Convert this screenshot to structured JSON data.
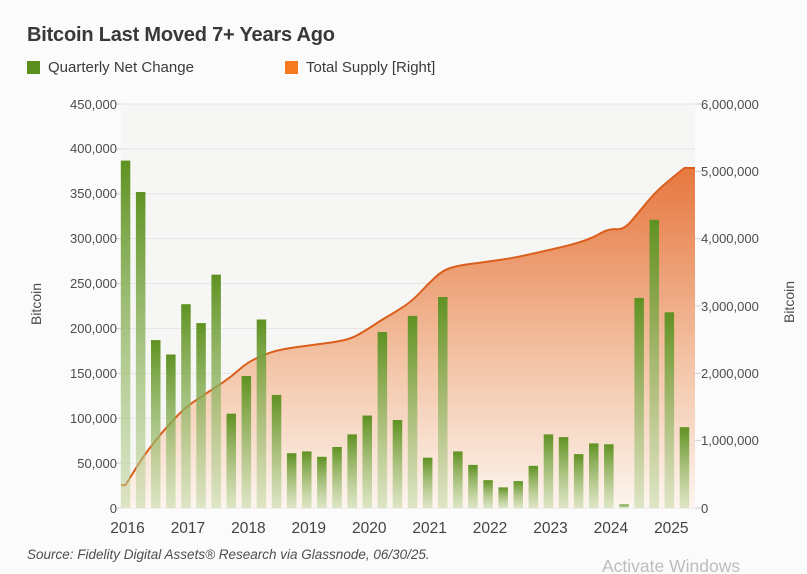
{
  "title": "Bitcoin Last Moved 7+ Years Ago",
  "legend": [
    {
      "label": "Quarterly Net Change",
      "color": "#5a8f1e"
    },
    {
      "label": "Total Supply [Right]",
      "color": "#f5791e"
    }
  ],
  "source_note": "Source: Fidelity Digital Assets® Research via Glassnode, 06/30/25.",
  "watermark": "Activate Windows",
  "chart_data": {
    "type": "bar",
    "subtype": "bar + area, dual axis",
    "grid": true,
    "legend_position": "top-left",
    "x": [
      "2016Q1",
      "2016Q2",
      "2016Q3",
      "2016Q4",
      "2017Q1",
      "2017Q2",
      "2017Q3",
      "2017Q4",
      "2018Q1",
      "2018Q2",
      "2018Q3",
      "2018Q4",
      "2019Q1",
      "2019Q2",
      "2019Q3",
      "2019Q4",
      "2020Q1",
      "2020Q2",
      "2020Q3",
      "2020Q4",
      "2021Q1",
      "2021Q2",
      "2021Q3",
      "2021Q4",
      "2022Q1",
      "2022Q2",
      "2022Q3",
      "2022Q4",
      "2023Q1",
      "2023Q2",
      "2023Q3",
      "2023Q4",
      "2024Q1",
      "2024Q2",
      "2024Q3",
      "2024Q4",
      "2025Q1",
      "2025Q2"
    ],
    "year_labels": [
      "2016",
      "2017",
      "2018",
      "2019",
      "2020",
      "2021",
      "2022",
      "2023",
      "2024",
      "2025"
    ],
    "series": [
      {
        "name": "Quarterly Net Change",
        "type": "bar",
        "axis": "left",
        "color_top": "#5f9222",
        "color_bottom": "#bdd59b",
        "values": [
          387000,
          352000,
          187000,
          171000,
          227000,
          206000,
          260000,
          105000,
          147000,
          210000,
          126000,
          61000,
          63000,
          57000,
          68000,
          82000,
          103000,
          196000,
          98000,
          214000,
          56000,
          235000,
          63000,
          48000,
          31000,
          23000,
          30000,
          47000,
          82000,
          79000,
          60000,
          72000,
          71000,
          4000,
          234000,
          321000,
          218000,
          90000
        ]
      },
      {
        "name": "Total Supply [Right]",
        "type": "area",
        "axis": "right",
        "line_color": "#da5f1d",
        "values": [
          340000,
          710000,
          1010000,
          1270000,
          1500000,
          1650000,
          1800000,
          1950000,
          2150000,
          2260000,
          2340000,
          2380000,
          2410000,
          2440000,
          2470000,
          2520000,
          2650000,
          2800000,
          2930000,
          3080000,
          3320000,
          3530000,
          3600000,
          3630000,
          3660000,
          3690000,
          3730000,
          3780000,
          3830000,
          3880000,
          3940000,
          4020000,
          4150000,
          4130000,
          4400000,
          4670000,
          4870000,
          5050000
        ]
      }
    ],
    "left_axis": {
      "label": "Bitcoin",
      "min": 0,
      "max": 450000,
      "tick_step": 50000,
      "ticks": [
        "450,000",
        "400,000",
        "350,000",
        "300,000",
        "250,000",
        "200,000",
        "150,000",
        "100,000",
        "50,000",
        "0"
      ]
    },
    "right_axis": {
      "label": "Bitcoin",
      "min": 0,
      "max": 6000000,
      "tick_step": 1000000,
      "ticks": [
        "6,000,000",
        "5,000,000",
        "4,000,000",
        "3,000,000",
        "2,000,000",
        "1,000,000",
        "0"
      ]
    }
  }
}
